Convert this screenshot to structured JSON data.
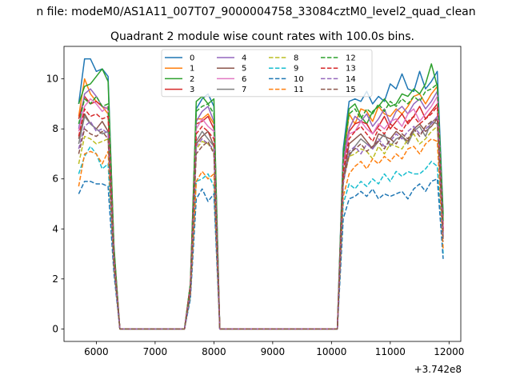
{
  "suptitle": "n file: modeM0/AS1A11_007T07_9000004758_33084cztM0_level2_quad_clean",
  "chart_data": {
    "type": "line",
    "title": "Quadrant 2 module wise count rates with 100.0s bins.",
    "xlabel": "",
    "ylabel": "",
    "x_offset_label": "+3.742e8",
    "xlim": [
      5450,
      12200
    ],
    "ylim": [
      -0.5,
      11.3
    ],
    "xticks": [
      6000,
      7000,
      8000,
      9000,
      10000,
      11000,
      12000
    ],
    "xtick_labels": [
      "6000",
      "7000",
      "8000",
      "9000",
      "10000",
      "11000",
      "12000"
    ],
    "yticks": [
      0,
      2,
      4,
      6,
      8,
      10
    ],
    "ytick_labels": [
      "0",
      "2",
      "4",
      "6",
      "8",
      "10"
    ],
    "grid": false,
    "legend_position": "upper-center",
    "legend_columns": 4,
    "x": [
      5700,
      5800,
      5900,
      6000,
      6100,
      6200,
      6300,
      6400,
      6500,
      6600,
      6700,
      6800,
      6900,
      7000,
      7100,
      7200,
      7300,
      7400,
      7500,
      7600,
      7700,
      7800,
      7900,
      8000,
      8100,
      8200,
      8300,
      8400,
      8500,
      8600,
      8700,
      8800,
      8900,
      9000,
      9100,
      9200,
      9300,
      9400,
      9500,
      9600,
      9700,
      9800,
      9900,
      10000,
      10100,
      10200,
      10300,
      10400,
      10500,
      10600,
      10700,
      10800,
      10900,
      11000,
      11100,
      11200,
      11300,
      11400,
      11500,
      11600,
      11700,
      11800,
      11900
    ],
    "series": [
      {
        "name": "0",
        "color": "#1f77b4",
        "dash": "solid",
        "values": [
          9.0,
          10.8,
          10.8,
          10.3,
          10.4,
          10.1,
          3.2,
          0,
          0,
          0,
          0,
          0,
          0,
          0,
          0,
          0,
          0,
          0,
          0,
          1.8,
          8.8,
          9.2,
          9.4,
          8.9,
          0,
          0,
          0,
          0,
          0,
          0,
          0,
          0,
          0,
          0,
          0,
          0,
          0,
          0,
          0,
          0,
          0,
          0,
          0,
          0,
          0,
          7.2,
          9.1,
          9.2,
          9.1,
          9.5,
          9.0,
          9.3,
          9.1,
          9.8,
          9.6,
          10.2,
          9.6,
          9.5,
          10.3,
          9.6,
          9.9,
          10.3,
          4.6
        ]
      },
      {
        "name": "1",
        "color": "#ff7f0e",
        "dash": "solid",
        "values": [
          8.5,
          10.0,
          9.4,
          9.1,
          8.9,
          8.6,
          3.1,
          0,
          0,
          0,
          0,
          0,
          0,
          0,
          0,
          0,
          0,
          0,
          0,
          1.7,
          8.4,
          8.4,
          8.6,
          8.2,
          0,
          0,
          0,
          0,
          0,
          0,
          0,
          0,
          0,
          0,
          0,
          0,
          0,
          0,
          0,
          0,
          0,
          0,
          0,
          0,
          0,
          6.6,
          8.6,
          8.2,
          8.8,
          8.7,
          8.3,
          8.9,
          8.6,
          8.5,
          8.8,
          8.6,
          8.9,
          9.3,
          9.4,
          9.0,
          9.4,
          9.7,
          4.2
        ]
      },
      {
        "name": "2",
        "color": "#2ca02c",
        "dash": "solid",
        "values": [
          9.0,
          9.7,
          9.8,
          10.1,
          10.4,
          9.9,
          3.3,
          0,
          0,
          0,
          0,
          0,
          0,
          0,
          0,
          0,
          0,
          0,
          0,
          1.8,
          9.1,
          9.3,
          9.0,
          9.2,
          0,
          0,
          0,
          0,
          0,
          0,
          0,
          0,
          0,
          0,
          0,
          0,
          0,
          0,
          0,
          0,
          0,
          0,
          0,
          0,
          0,
          7.0,
          8.8,
          9.0,
          8.5,
          8.2,
          8.7,
          8.9,
          9.2,
          8.9,
          9.0,
          9.4,
          9.3,
          9.6,
          9.4,
          9.8,
          10.6,
          9.7,
          4.5
        ]
      },
      {
        "name": "3",
        "color": "#d62728",
        "dash": "solid",
        "values": [
          8.4,
          9.3,
          9.0,
          9.1,
          8.9,
          8.8,
          3.0,
          0,
          0,
          0,
          0,
          0,
          0,
          0,
          0,
          0,
          0,
          0,
          0,
          1.7,
          8.2,
          8.3,
          8.5,
          8.0,
          0,
          0,
          0,
          0,
          0,
          0,
          0,
          0,
          0,
          0,
          0,
          0,
          0,
          0,
          0,
          0,
          0,
          0,
          0,
          0,
          0,
          6.5,
          7.9,
          8.2,
          8.3,
          8.2,
          7.8,
          8.1,
          8.5,
          8.0,
          8.3,
          8.6,
          8.2,
          8.5,
          8.9,
          8.4,
          8.7,
          9.0,
          4.0
        ]
      },
      {
        "name": "4",
        "color": "#9467bd",
        "dash": "solid",
        "values": [
          8.0,
          9.4,
          9.6,
          9.3,
          8.9,
          8.8,
          3.0,
          0,
          0,
          0,
          0,
          0,
          0,
          0,
          0,
          0,
          0,
          0,
          0,
          1.7,
          8.3,
          8.7,
          8.9,
          8.3,
          0,
          0,
          0,
          0,
          0,
          0,
          0,
          0,
          0,
          0,
          0,
          0,
          0,
          0,
          0,
          0,
          0,
          0,
          0,
          0,
          0,
          6.8,
          8.0,
          8.5,
          8.3,
          8.6,
          8.1,
          8.4,
          8.8,
          8.2,
          8.7,
          8.9,
          8.6,
          9.0,
          9.2,
          8.8,
          9.1,
          9.5,
          4.1
        ]
      },
      {
        "name": "5",
        "color": "#8c564b",
        "dash": "solid",
        "values": [
          7.6,
          8.6,
          8.2,
          8.0,
          8.3,
          7.9,
          2.8,
          0,
          0,
          0,
          0,
          0,
          0,
          0,
          0,
          0,
          0,
          0,
          0,
          1.6,
          7.4,
          7.7,
          7.9,
          7.3,
          0,
          0,
          0,
          0,
          0,
          0,
          0,
          0,
          0,
          0,
          0,
          0,
          0,
          0,
          0,
          0,
          0,
          0,
          0,
          0,
          0,
          6.0,
          7.4,
          7.6,
          7.8,
          7.5,
          7.2,
          7.8,
          7.7,
          7.6,
          7.9,
          7.7,
          7.5,
          8.0,
          8.2,
          7.9,
          8.1,
          8.4,
          3.8
        ]
      },
      {
        "name": "6",
        "color": "#e377c2",
        "dash": "solid",
        "values": [
          7.9,
          8.9,
          9.2,
          9.0,
          8.7,
          8.9,
          3.0,
          0,
          0,
          0,
          0,
          0,
          0,
          0,
          0,
          0,
          0,
          0,
          0,
          1.7,
          8.0,
          8.4,
          8.1,
          7.9,
          0,
          0,
          0,
          0,
          0,
          0,
          0,
          0,
          0,
          0,
          0,
          0,
          0,
          0,
          0,
          0,
          0,
          0,
          0,
          0,
          0,
          6.4,
          7.8,
          7.9,
          8.3,
          8.0,
          7.8,
          8.2,
          8.0,
          8.3,
          8.4,
          8.1,
          8.6,
          8.8,
          8.3,
          8.6,
          8.9,
          9.3,
          4.0
        ]
      },
      {
        "name": "7",
        "color": "#7f7f7f",
        "dash": "solid",
        "values": [
          7.4,
          8.5,
          8.2,
          8.0,
          7.8,
          7.9,
          2.8,
          0,
          0,
          0,
          0,
          0,
          0,
          0,
          0,
          0,
          0,
          0,
          0,
          1.6,
          7.5,
          7.9,
          7.6,
          7.3,
          0,
          0,
          0,
          0,
          0,
          0,
          0,
          0,
          0,
          0,
          0,
          0,
          0,
          0,
          0,
          0,
          0,
          0,
          0,
          0,
          0,
          6.0,
          6.9,
          7.3,
          7.6,
          7.4,
          7.2,
          7.5,
          7.8,
          7.3,
          7.6,
          7.7,
          7.4,
          7.9,
          8.1,
          7.7,
          8.3,
          8.2,
          3.7
        ]
      },
      {
        "name": "8",
        "color": "#bcbd22",
        "dash": "dashed",
        "values": [
          6.6,
          7.7,
          7.6,
          7.4,
          7.5,
          7.6,
          2.6,
          0,
          0,
          0,
          0,
          0,
          0,
          0,
          0,
          0,
          0,
          0,
          0,
          1.5,
          7.2,
          7.5,
          7.4,
          7.1,
          0,
          0,
          0,
          0,
          0,
          0,
          0,
          0,
          0,
          0,
          0,
          0,
          0,
          0,
          0,
          0,
          0,
          0,
          0,
          0,
          0,
          5.9,
          6.9,
          7.0,
          7.2,
          7.1,
          6.8,
          7.3,
          7.0,
          7.4,
          7.3,
          7.2,
          7.6,
          7.8,
          7.4,
          7.6,
          7.9,
          8.1,
          3.6
        ]
      },
      {
        "name": "9",
        "color": "#17becf",
        "dash": "dashed",
        "values": [
          6.2,
          6.9,
          7.3,
          7.0,
          6.4,
          6.6,
          2.4,
          0,
          0,
          0,
          0,
          0,
          0,
          0,
          0,
          0,
          0,
          0,
          0,
          1.3,
          5.9,
          6.0,
          6.2,
          5.7,
          0,
          0,
          0,
          0,
          0,
          0,
          0,
          0,
          0,
          0,
          0,
          0,
          0,
          0,
          0,
          0,
          0,
          0,
          0,
          0,
          0,
          5.0,
          5.8,
          5.6,
          5.9,
          5.7,
          6.0,
          5.8,
          6.2,
          5.9,
          6.3,
          6.1,
          6.3,
          6.2,
          6.2,
          6.4,
          6.7,
          6.5,
          3.0
        ]
      },
      {
        "name": "10",
        "color": "#1f77b4",
        "dash": "dashed",
        "values": [
          5.4,
          5.9,
          5.9,
          5.8,
          5.8,
          5.7,
          2.2,
          0,
          0,
          0,
          0,
          0,
          0,
          0,
          0,
          0,
          0,
          0,
          0,
          1.2,
          5.2,
          5.6,
          5.1,
          5.4,
          0,
          0,
          0,
          0,
          0,
          0,
          0,
          0,
          0,
          0,
          0,
          0,
          0,
          0,
          0,
          0,
          0,
          0,
          0,
          0,
          0,
          4.4,
          5.2,
          5.3,
          5.5,
          5.3,
          5.6,
          5.2,
          5.4,
          5.3,
          5.4,
          5.5,
          5.2,
          5.6,
          5.8,
          5.5,
          5.9,
          6.0,
          2.8
        ]
      },
      {
        "name": "11",
        "color": "#ff7f0e",
        "dash": "dashed",
        "values": [
          5.7,
          7.0,
          7.1,
          7.0,
          6.6,
          7.1,
          2.5,
          0,
          0,
          0,
          0,
          0,
          0,
          0,
          0,
          0,
          0,
          0,
          0,
          1.4,
          5.9,
          6.3,
          6.0,
          6.2,
          0,
          0,
          0,
          0,
          0,
          0,
          0,
          0,
          0,
          0,
          0,
          0,
          0,
          0,
          0,
          0,
          0,
          0,
          0,
          0,
          0,
          5.3,
          6.2,
          6.5,
          6.7,
          6.4,
          6.8,
          6.6,
          6.9,
          6.7,
          7.0,
          6.8,
          7.2,
          7.3,
          7.0,
          7.4,
          7.6,
          7.5,
          3.2
        ]
      },
      {
        "name": "12",
        "color": "#2ca02c",
        "dash": "dashed",
        "values": [
          8.2,
          9.2,
          9.0,
          9.3,
          8.9,
          9.0,
          3.1,
          0,
          0,
          0,
          0,
          0,
          0,
          0,
          0,
          0,
          0,
          0,
          0,
          1.8,
          8.7,
          8.9,
          9.0,
          8.6,
          0,
          0,
          0,
          0,
          0,
          0,
          0,
          0,
          0,
          0,
          0,
          0,
          0,
          0,
          0,
          0,
          0,
          0,
          0,
          0,
          0,
          6.9,
          8.6,
          8.8,
          8.4,
          8.8,
          8.6,
          9.0,
          8.7,
          9.1,
          8.9,
          9.2,
          9.0,
          9.3,
          9.1,
          9.5,
          9.6,
          9.8,
          4.3
        ]
      },
      {
        "name": "13",
        "color": "#d62728",
        "dash": "dashed",
        "values": [
          7.7,
          8.8,
          8.5,
          8.6,
          8.4,
          8.5,
          2.9,
          0,
          0,
          0,
          0,
          0,
          0,
          0,
          0,
          0,
          0,
          0,
          0,
          1.7,
          7.8,
          8.1,
          7.9,
          7.6,
          0,
          0,
          0,
          0,
          0,
          0,
          0,
          0,
          0,
          0,
          0,
          0,
          0,
          0,
          0,
          0,
          0,
          0,
          0,
          0,
          0,
          6.3,
          7.6,
          7.9,
          8.1,
          7.8,
          7.5,
          8.0,
          7.8,
          8.2,
          8.0,
          7.9,
          8.3,
          8.5,
          8.2,
          8.4,
          8.6,
          8.9,
          3.9
        ]
      },
      {
        "name": "14",
        "color": "#9467bd",
        "dash": "dashed",
        "values": [
          7.2,
          8.1,
          8.3,
          7.9,
          8.0,
          7.8,
          2.7,
          0,
          0,
          0,
          0,
          0,
          0,
          0,
          0,
          0,
          0,
          0,
          0,
          1.5,
          7.3,
          7.6,
          7.4,
          7.2,
          0,
          0,
          0,
          0,
          0,
          0,
          0,
          0,
          0,
          0,
          0,
          0,
          0,
          0,
          0,
          0,
          0,
          0,
          0,
          0,
          0,
          5.8,
          7.1,
          7.3,
          7.0,
          7.4,
          7.2,
          7.6,
          7.3,
          7.5,
          7.8,
          7.6,
          7.9,
          8.1,
          7.8,
          8.0,
          8.2,
          8.5,
          3.6
        ]
      },
      {
        "name": "15",
        "color": "#8c564b",
        "dash": "dashed",
        "values": [
          7.0,
          8.0,
          7.8,
          7.7,
          7.9,
          7.6,
          2.7,
          0,
          0,
          0,
          0,
          0,
          0,
          0,
          0,
          0,
          0,
          0,
          0,
          1.5,
          7.0,
          7.3,
          7.5,
          7.0,
          0,
          0,
          0,
          0,
          0,
          0,
          0,
          0,
          0,
          0,
          0,
          0,
          0,
          0,
          0,
          0,
          0,
          0,
          0,
          0,
          0,
          5.9,
          7.0,
          7.2,
          7.4,
          7.1,
          7.3,
          7.5,
          7.2,
          7.6,
          7.4,
          7.8,
          7.6,
          8.0,
          7.7,
          8.1,
          8.3,
          8.4,
          3.5
        ]
      }
    ]
  }
}
